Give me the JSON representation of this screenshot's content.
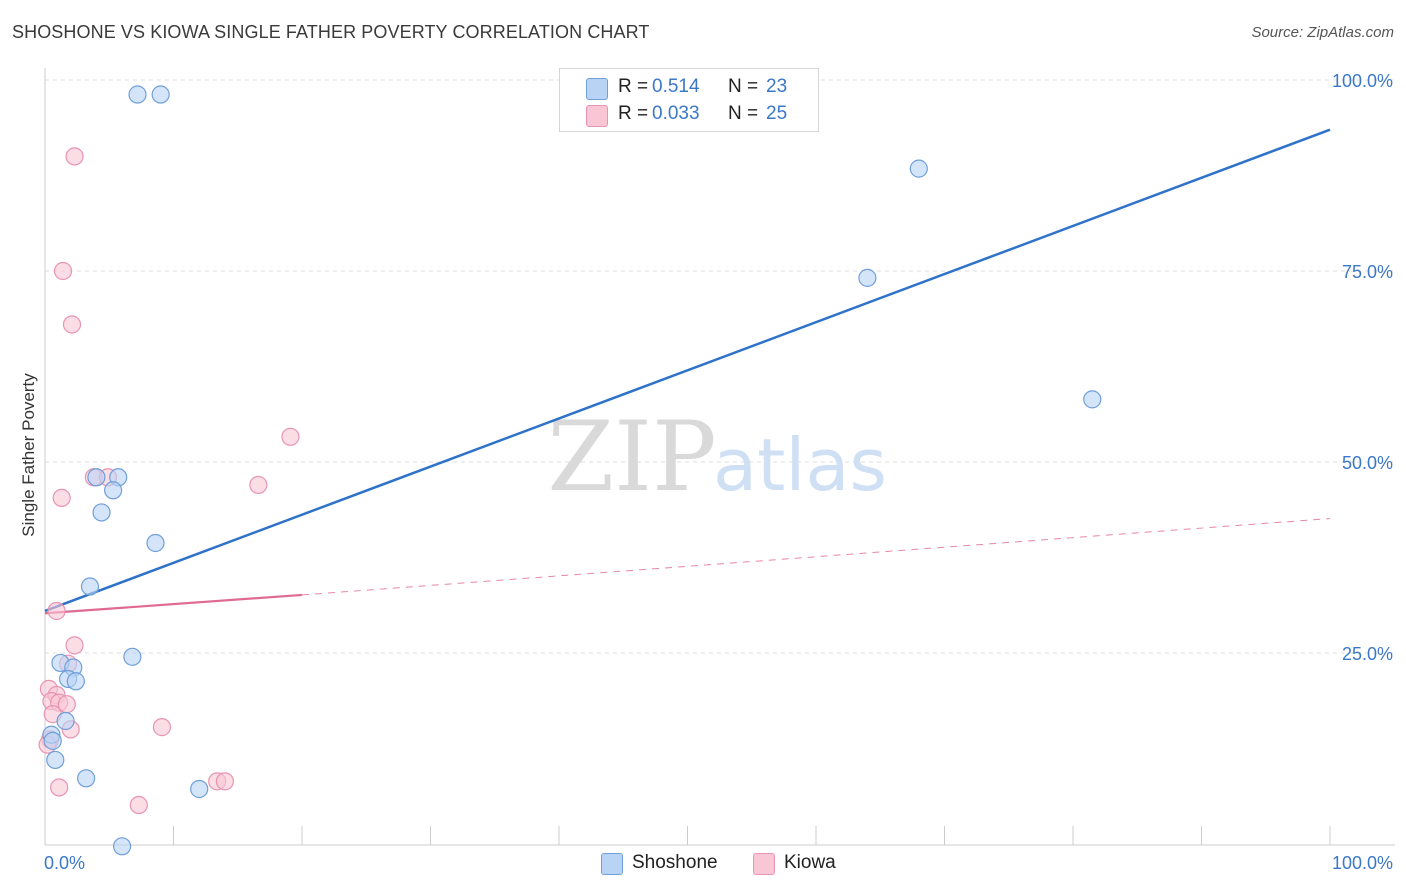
{
  "title": "SHOSHONE VS KIOWA SINGLE FATHER POVERTY CORRELATION CHART",
  "source": "Source: ZipAtlas.com",
  "watermark": {
    "zip": "ZIP",
    "atlas": "atlas"
  },
  "legend": {
    "rows": [
      {
        "r_label": "R =",
        "r_value": "0.514",
        "n_label": "N =",
        "n_value": "23"
      },
      {
        "r_label": "R =",
        "r_value": "0.033",
        "n_label": "N =",
        "n_value": "25"
      }
    ]
  },
  "colors": {
    "shoshone_fill": "#b9d3f5",
    "shoshone_stroke": "#6f9fd9",
    "shoshone_line": "#2f72c9",
    "kiowa_fill": "#f9c6d6",
    "kiowa_stroke": "#e894b2",
    "kiowa_line": "#e06a92",
    "tick_label": "#3b78c8",
    "grid": "#dddddd"
  },
  "chart_data": {
    "type": "scatter",
    "title": "SHOSHONE VS KIOWA SINGLE FATHER POVERTY CORRELATION CHART",
    "xlabel": "",
    "ylabel": "Single Father Poverty",
    "xlim": [
      0,
      100
    ],
    "ylim": [
      0,
      100
    ],
    "x_tick_labels": [
      "0.0%",
      "100.0%"
    ],
    "y_ticks": [
      25,
      50,
      75,
      100
    ],
    "y_tick_labels": [
      "25.0%",
      "50.0%",
      "75.0%",
      "100.0%"
    ],
    "grid": true,
    "series": [
      {
        "name": "Shoshone",
        "color": "#6f9fd9",
        "points": [
          {
            "x": 7.2,
            "y": 98.1
          },
          {
            "x": 9.0,
            "y": 98.1
          },
          {
            "x": 68.0,
            "y": 88.4
          },
          {
            "x": 64.0,
            "y": 74.1
          },
          {
            "x": 81.5,
            "y": 58.2
          },
          {
            "x": 4.0,
            "y": 48.0
          },
          {
            "x": 5.7,
            "y": 48.0
          },
          {
            "x": 5.3,
            "y": 46.3
          },
          {
            "x": 4.4,
            "y": 43.4
          },
          {
            "x": 8.6,
            "y": 39.4
          },
          {
            "x": 3.5,
            "y": 33.7
          },
          {
            "x": 6.8,
            "y": 24.5
          },
          {
            "x": 1.2,
            "y": 23.7
          },
          {
            "x": 2.2,
            "y": 23.1
          },
          {
            "x": 1.8,
            "y": 21.6
          },
          {
            "x": 2.4,
            "y": 21.3
          },
          {
            "x": 1.6,
            "y": 16.1
          },
          {
            "x": 0.5,
            "y": 14.3
          },
          {
            "x": 0.6,
            "y": 13.5
          },
          {
            "x": 0.8,
            "y": 11.0
          },
          {
            "x": 3.2,
            "y": 8.6
          },
          {
            "x": 12.0,
            "y": 7.2
          },
          {
            "x": 6.0,
            "y": -0.3
          }
        ],
        "trend": {
          "x0": 0,
          "y0": 30.5,
          "x1": 100,
          "y1": 93.5,
          "style": "solid"
        }
      },
      {
        "name": "Kiowa",
        "color": "#e894b2",
        "points": [
          {
            "x": 2.3,
            "y": 90.0
          },
          {
            "x": 1.4,
            "y": 75.0
          },
          {
            "x": 2.1,
            "y": 68.0
          },
          {
            "x": 19.1,
            "y": 53.3
          },
          {
            "x": 3.8,
            "y": 48.0
          },
          {
            "x": 4.9,
            "y": 48.0
          },
          {
            "x": 16.6,
            "y": 47.0
          },
          {
            "x": 1.3,
            "y": 45.3
          },
          {
            "x": 0.9,
            "y": 30.5
          },
          {
            "x": 2.3,
            "y": 26.0
          },
          {
            "x": 1.8,
            "y": 23.6
          },
          {
            "x": 0.3,
            "y": 20.3
          },
          {
            "x": 0.9,
            "y": 19.5
          },
          {
            "x": 0.5,
            "y": 18.7
          },
          {
            "x": 1.1,
            "y": 18.5
          },
          {
            "x": 1.7,
            "y": 18.3
          },
          {
            "x": 0.6,
            "y": 17.0
          },
          {
            "x": 2.0,
            "y": 15.0
          },
          {
            "x": 9.1,
            "y": 15.3
          },
          {
            "x": 0.4,
            "y": 13.7
          },
          {
            "x": 13.4,
            "y": 8.2
          },
          {
            "x": 14.0,
            "y": 8.2
          },
          {
            "x": 1.1,
            "y": 7.4
          },
          {
            "x": 7.3,
            "y": 5.1
          },
          {
            "x": 0.2,
            "y": 13.0
          }
        ],
        "trend": {
          "x0": 0,
          "y0": 30.2,
          "x1": 20,
          "y1": 32.6,
          "ext_x1": 100,
          "ext_y1": 42.6,
          "style": "solid+dashed"
        }
      }
    ]
  }
}
